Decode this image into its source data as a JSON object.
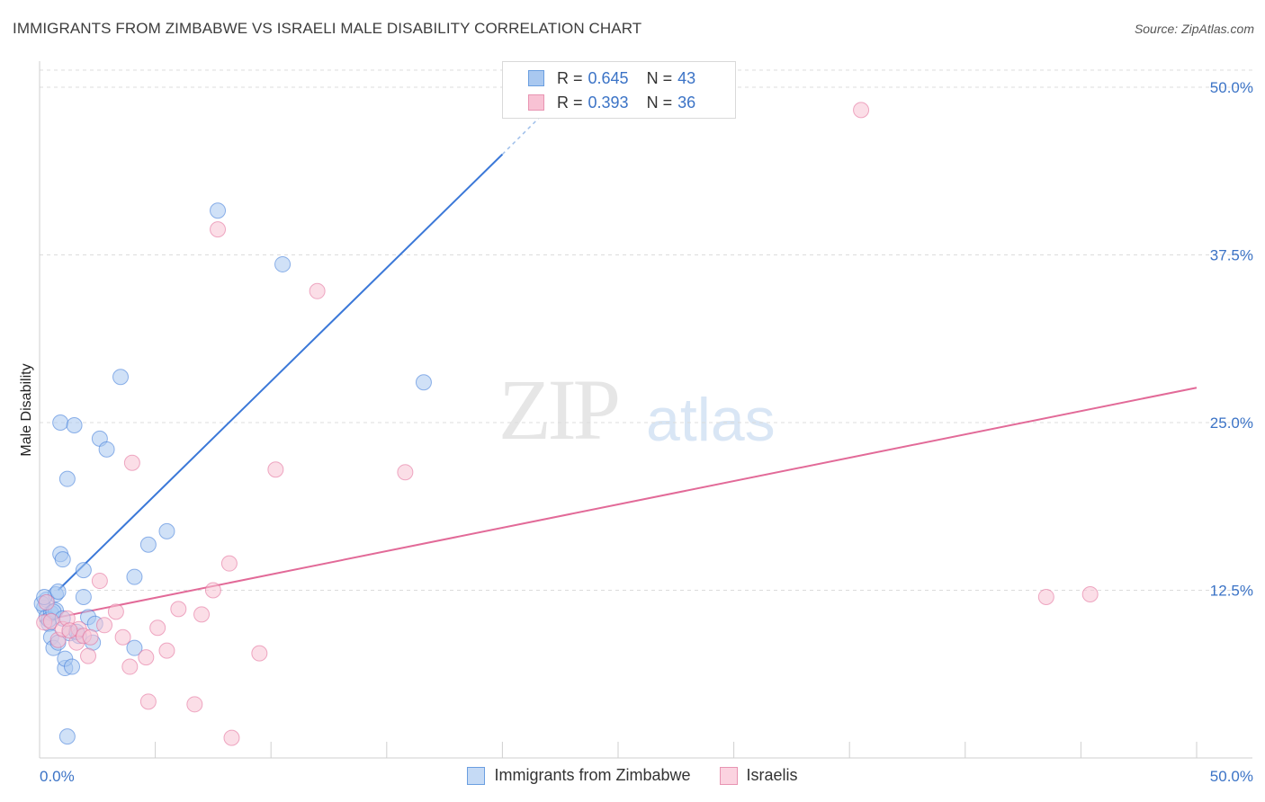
{
  "header": {
    "title": "IMMIGRANTS FROM ZIMBABWE VS ISRAELI MALE DISABILITY CORRELATION CHART",
    "source": "Source: ZipAtlas.com"
  },
  "watermark": {
    "zip": "ZIP",
    "atlas": "atlas"
  },
  "legend": {
    "rows": [
      {
        "r_label": "R =",
        "r_value": "0.645",
        "n_label": "N =",
        "n_value": "43",
        "color": "#a9c8f0",
        "border": "#6a9ee0"
      },
      {
        "r_label": "R =",
        "r_value": "0.393",
        "n_label": "N =",
        "n_value": "36",
        "color": "#f8c2d4",
        "border": "#e894b2"
      }
    ]
  },
  "bottom_legend": {
    "items": [
      {
        "label": "Immigrants from Zimbabwe",
        "color": "#c5daf5",
        "border": "#6a9ee0"
      },
      {
        "label": "Israelis",
        "color": "#fbd3e0",
        "border": "#e894b2"
      }
    ]
  },
  "chart_data": {
    "type": "scatter",
    "title": "IMMIGRANTS FROM ZIMBABWE VS ISRAELI MALE DISABILITY CORRELATION CHART",
    "ylabel": "Male Disability",
    "xlabel": "",
    "xlim": [
      0,
      50
    ],
    "ylim": [
      0,
      50
    ],
    "x_tick_labels": [
      "0.0%",
      "50.0%"
    ],
    "y_ticks": [
      12.5,
      25.0,
      37.5,
      50.0
    ],
    "y_tick_labels": [
      "12.5%",
      "25.0%",
      "37.5%",
      "50.0%"
    ],
    "grid": true,
    "series": [
      {
        "name": "Immigrants from Zimbabwe",
        "color": "#3b78d8",
        "fill": "#a9c8f0",
        "points": [
          [
            0.2,
            11.2
          ],
          [
            0.3,
            10.5
          ],
          [
            0.3,
            11.8
          ],
          [
            0.4,
            10.0
          ],
          [
            0.5,
            10.8
          ],
          [
            0.5,
            9.0
          ],
          [
            0.6,
            8.2
          ],
          [
            0.7,
            12.2
          ],
          [
            0.7,
            11.0
          ],
          [
            0.8,
            8.6
          ],
          [
            0.9,
            15.2
          ],
          [
            0.9,
            25.0
          ],
          [
            1.0,
            14.8
          ],
          [
            1.1,
            6.7
          ],
          [
            1.1,
            7.4
          ],
          [
            1.2,
            20.8
          ],
          [
            1.2,
            1.6
          ],
          [
            1.3,
            9.3
          ],
          [
            1.4,
            6.8
          ],
          [
            1.5,
            24.8
          ],
          [
            1.7,
            9.1
          ],
          [
            1.9,
            12.0
          ],
          [
            1.9,
            14.0
          ],
          [
            2.1,
            10.5
          ],
          [
            2.3,
            8.6
          ],
          [
            2.4,
            10.0
          ],
          [
            2.6,
            23.8
          ],
          [
            2.9,
            23.0
          ],
          [
            3.5,
            28.4
          ],
          [
            4.1,
            13.5
          ],
          [
            4.1,
            8.2
          ],
          [
            4.7,
            15.9
          ],
          [
            5.5,
            16.9
          ],
          [
            7.7,
            40.8
          ],
          [
            10.5,
            36.8
          ],
          [
            16.6,
            28.0
          ],
          [
            0.1,
            11.5
          ],
          [
            0.2,
            12.0
          ],
          [
            0.4,
            10.3
          ],
          [
            0.6,
            10.9
          ],
          [
            1.0,
            10.4
          ],
          [
            1.6,
            9.4
          ],
          [
            0.8,
            12.4
          ]
        ],
        "trend": {
          "x0": 0.8,
          "y0": 12.5,
          "x1": 20.0,
          "y1": 45.0,
          "dash_x1": 23.5,
          "dash_y1": 51.0
        }
      },
      {
        "name": "Israelis",
        "color": "#e26a98",
        "fill": "#f8c2d4",
        "points": [
          [
            0.2,
            10.1
          ],
          [
            0.3,
            11.6
          ],
          [
            0.5,
            10.2
          ],
          [
            0.8,
            8.8
          ],
          [
            1.0,
            9.6
          ],
          [
            1.2,
            10.4
          ],
          [
            1.6,
            8.6
          ],
          [
            1.7,
            9.6
          ],
          [
            1.9,
            9.1
          ],
          [
            2.1,
            7.6
          ],
          [
            2.2,
            9.0
          ],
          [
            2.6,
            13.2
          ],
          [
            2.8,
            9.9
          ],
          [
            3.3,
            10.9
          ],
          [
            3.6,
            9.0
          ],
          [
            3.9,
            6.8
          ],
          [
            4.0,
            22.0
          ],
          [
            4.6,
            7.5
          ],
          [
            4.7,
            4.2
          ],
          [
            5.1,
            9.7
          ],
          [
            5.5,
            8.0
          ],
          [
            6.0,
            11.1
          ],
          [
            6.7,
            4.0
          ],
          [
            7.0,
            10.7
          ],
          [
            7.5,
            12.5
          ],
          [
            7.7,
            39.4
          ],
          [
            8.2,
            14.5
          ],
          [
            8.3,
            1.5
          ],
          [
            9.5,
            7.8
          ],
          [
            10.2,
            21.5
          ],
          [
            12.0,
            34.8
          ],
          [
            15.8,
            21.3
          ],
          [
            35.5,
            48.3
          ],
          [
            43.5,
            12.0
          ],
          [
            45.4,
            12.2
          ],
          [
            1.3,
            9.5
          ]
        ],
        "trend": {
          "x0": 0.0,
          "y0": 10.2,
          "x1": 50.0,
          "y1": 27.6
        }
      }
    ]
  }
}
